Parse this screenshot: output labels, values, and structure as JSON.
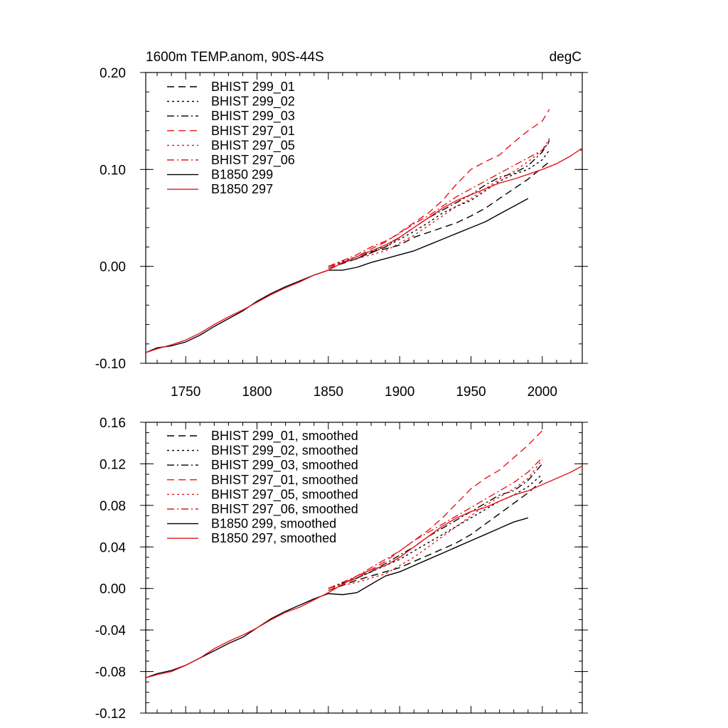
{
  "figure": {
    "title_left": "1600m TEMP.anom, 90S-44S",
    "title_right": "degC"
  },
  "styles": {
    "black": "#000000",
    "red": "#e8141e",
    "dash_types": {
      "dash": "10,6",
      "dot": "3,4",
      "dashdot": "10,4,2,4",
      "solid": ""
    }
  },
  "chart_data": [
    {
      "type": "line",
      "xlim": [
        1722,
        2028
      ],
      "ylim": [
        -0.1,
        0.2
      ],
      "x_ticks": [
        1750,
        1800,
        1850,
        1900,
        1950,
        2000
      ],
      "x_tick_labels": [
        "1750",
        "1800",
        "1850",
        "1900",
        "1950",
        "2000"
      ],
      "y_ticks": [
        -0.1,
        0.0,
        0.1,
        0.2
      ],
      "y_tick_labels": [
        "-0.10",
        "0.00",
        "0.10",
        "0.20"
      ],
      "y_minor_step": 0.02,
      "series": [
        {
          "name": "BHIST 299_01",
          "color": "black",
          "dash": "dash",
          "x": [
            1850,
            1870,
            1880,
            1890,
            1900,
            1910,
            1920,
            1930,
            1940,
            1950,
            1960,
            1970,
            1980,
            1990,
            2000,
            2005
          ],
          "y": [
            -0.002,
            0.008,
            0.015,
            0.018,
            0.022,
            0.03,
            0.035,
            0.04,
            0.045,
            0.052,
            0.06,
            0.07,
            0.08,
            0.09,
            0.102,
            0.108
          ]
        },
        {
          "name": "BHIST 299_02",
          "color": "black",
          "dash": "dot",
          "x": [
            1850,
            1870,
            1880,
            1890,
            1900,
            1910,
            1920,
            1930,
            1940,
            1950,
            1960,
            1970,
            1980,
            1990,
            2000,
            2005
          ],
          "y": [
            0.0,
            0.01,
            0.016,
            0.02,
            0.028,
            0.036,
            0.045,
            0.055,
            0.062,
            0.068,
            0.078,
            0.088,
            0.095,
            0.1,
            0.11,
            0.12
          ]
        },
        {
          "name": "BHIST 299_03",
          "color": "black",
          "dash": "dashdot",
          "x": [
            1850,
            1870,
            1880,
            1890,
            1900,
            1910,
            1920,
            1930,
            1940,
            1950,
            1960,
            1970,
            1980,
            1990,
            2000,
            2005
          ],
          "y": [
            0.0,
            0.008,
            0.014,
            0.02,
            0.03,
            0.04,
            0.05,
            0.058,
            0.066,
            0.074,
            0.084,
            0.092,
            0.096,
            0.104,
            0.118,
            0.13
          ]
        },
        {
          "name": "BHIST 297_01",
          "color": "red",
          "dash": "dash",
          "x": [
            1850,
            1870,
            1880,
            1890,
            1900,
            1910,
            1920,
            1930,
            1940,
            1950,
            1960,
            1970,
            1980,
            1990,
            2000,
            2005
          ],
          "y": [
            -0.002,
            0.01,
            0.018,
            0.025,
            0.035,
            0.045,
            0.055,
            0.068,
            0.085,
            0.1,
            0.108,
            0.115,
            0.128,
            0.14,
            0.15,
            0.162
          ]
        },
        {
          "name": "BHIST 297_05",
          "color": "red",
          "dash": "dot",
          "x": [
            1850,
            1870,
            1880,
            1890,
            1900,
            1910,
            1920,
            1930,
            1940,
            1950,
            1960,
            1970,
            1980,
            1990,
            2000,
            2005
          ],
          "y": [
            0.0,
            0.008,
            0.012,
            0.016,
            0.024,
            0.032,
            0.042,
            0.052,
            0.062,
            0.07,
            0.08,
            0.09,
            0.098,
            0.108,
            0.12,
            0.128
          ]
        },
        {
          "name": "BHIST 297_06",
          "color": "red",
          "dash": "dashdot",
          "x": [
            1850,
            1870,
            1880,
            1890,
            1900,
            1910,
            1920,
            1930,
            1940,
            1950,
            1960,
            1970,
            1980,
            1990,
            2000,
            2005
          ],
          "y": [
            0.0,
            0.012,
            0.02,
            0.026,
            0.034,
            0.044,
            0.052,
            0.062,
            0.072,
            0.08,
            0.088,
            0.096,
            0.104,
            0.112,
            0.12,
            0.132
          ]
        },
        {
          "name": "B1850 299",
          "color": "black",
          "dash": "solid",
          "x": [
            1722,
            1730,
            1740,
            1750,
            1760,
            1770,
            1780,
            1790,
            1800,
            1810,
            1820,
            1830,
            1840,
            1850,
            1860,
            1870,
            1880,
            1890,
            1900,
            1910,
            1920,
            1930,
            1940,
            1950,
            1960,
            1970,
            1980,
            1990
          ],
          "y": [
            -0.089,
            -0.084,
            -0.082,
            -0.078,
            -0.071,
            -0.062,
            -0.054,
            -0.046,
            -0.036,
            -0.028,
            -0.021,
            -0.015,
            -0.009,
            -0.004,
            -0.004,
            -0.001,
            0.004,
            0.008,
            0.012,
            0.016,
            0.022,
            0.028,
            0.034,
            0.04,
            0.046,
            0.054,
            0.062,
            0.07
          ]
        },
        {
          "name": "B1850 297",
          "color": "red",
          "dash": "solid",
          "x": [
            1722,
            1730,
            1740,
            1750,
            1760,
            1770,
            1780,
            1790,
            1800,
            1810,
            1820,
            1830,
            1840,
            1850,
            1860,
            1870,
            1880,
            1890,
            1900,
            1910,
            1920,
            1930,
            1940,
            1950,
            1960,
            1970,
            1980,
            1990,
            2000,
            2010,
            2020,
            2028
          ],
          "y": [
            -0.089,
            -0.085,
            -0.081,
            -0.076,
            -0.069,
            -0.06,
            -0.052,
            -0.045,
            -0.037,
            -0.029,
            -0.022,
            -0.016,
            -0.009,
            -0.004,
            0.004,
            0.01,
            0.016,
            0.022,
            0.03,
            0.04,
            0.05,
            0.06,
            0.068,
            0.074,
            0.08,
            0.086,
            0.09,
            0.095,
            0.1,
            0.106,
            0.114,
            0.122
          ]
        }
      ]
    },
    {
      "type": "line",
      "xlim": [
        1722,
        2028
      ],
      "ylim": [
        -0.12,
        0.16
      ],
      "x_ticks": [
        1750,
        1800,
        1850,
        1900,
        1950,
        2000
      ],
      "x_tick_labels": [],
      "y_ticks": [
        -0.12,
        -0.08,
        -0.04,
        0.0,
        0.04,
        0.08,
        0.12,
        0.16
      ],
      "y_tick_labels": [
        "-0.12",
        "-0.08",
        "-0.04",
        "0.00",
        "0.04",
        "0.08",
        "0.12",
        "0.16"
      ],
      "y_minor_step": 0.01,
      "series": [
        {
          "name": "BHIST 299_01, smoothed",
          "color": "black",
          "dash": "dash",
          "x": [
            1850,
            1870,
            1880,
            1890,
            1900,
            1910,
            1920,
            1930,
            1940,
            1950,
            1960,
            1970,
            1980,
            1990,
            2000
          ],
          "y": [
            -0.002,
            0.008,
            0.012,
            0.016,
            0.02,
            0.026,
            0.032,
            0.038,
            0.044,
            0.052,
            0.062,
            0.072,
            0.082,
            0.092,
            0.104
          ]
        },
        {
          "name": "BHIST 299_02, smoothed",
          "color": "black",
          "dash": "dot",
          "x": [
            1850,
            1870,
            1880,
            1890,
            1900,
            1910,
            1920,
            1930,
            1940,
            1950,
            1960,
            1970,
            1980,
            1990,
            2000
          ],
          "y": [
            0.0,
            0.01,
            0.016,
            0.022,
            0.028,
            0.036,
            0.044,
            0.052,
            0.06,
            0.068,
            0.076,
            0.084,
            0.09,
            0.098,
            0.11
          ]
        },
        {
          "name": "BHIST 299_03, smoothed",
          "color": "black",
          "dash": "dashdot",
          "x": [
            1850,
            1870,
            1880,
            1890,
            1900,
            1910,
            1920,
            1930,
            1940,
            1950,
            1960,
            1970,
            1980,
            1990,
            2000
          ],
          "y": [
            0.0,
            0.01,
            0.016,
            0.024,
            0.032,
            0.04,
            0.05,
            0.058,
            0.066,
            0.074,
            0.082,
            0.09,
            0.094,
            0.104,
            0.12
          ]
        },
        {
          "name": "BHIST 297_01, smoothed",
          "color": "red",
          "dash": "dash",
          "x": [
            1850,
            1870,
            1880,
            1890,
            1900,
            1910,
            1920,
            1930,
            1940,
            1950,
            1960,
            1970,
            1980,
            1990,
            2000
          ],
          "y": [
            -0.002,
            0.01,
            0.018,
            0.026,
            0.036,
            0.046,
            0.056,
            0.068,
            0.082,
            0.096,
            0.106,
            0.114,
            0.126,
            0.138,
            0.152
          ]
        },
        {
          "name": "BHIST 297_05, smoothed",
          "color": "red",
          "dash": "dot",
          "x": [
            1850,
            1870,
            1880,
            1890,
            1900,
            1910,
            1920,
            1930,
            1940,
            1950,
            1960,
            1970,
            1980,
            1990,
            2000
          ],
          "y": [
            0.0,
            0.006,
            0.01,
            0.014,
            0.022,
            0.03,
            0.04,
            0.05,
            0.06,
            0.07,
            0.08,
            0.088,
            0.096,
            0.106,
            0.124
          ]
        },
        {
          "name": "BHIST 297_06, smoothed",
          "color": "red",
          "dash": "dashdot",
          "x": [
            1850,
            1870,
            1880,
            1890,
            1900,
            1910,
            1920,
            1930,
            1940,
            1950,
            1960,
            1970,
            1980,
            1990,
            2000
          ],
          "y": [
            0.0,
            0.012,
            0.02,
            0.028,
            0.036,
            0.046,
            0.054,
            0.062,
            0.07,
            0.078,
            0.086,
            0.094,
            0.102,
            0.112,
            0.126
          ]
        },
        {
          "name": "B1850 299, smoothed",
          "color": "black",
          "dash": "solid",
          "x": [
            1722,
            1730,
            1740,
            1750,
            1760,
            1770,
            1780,
            1790,
            1800,
            1810,
            1820,
            1830,
            1840,
            1850,
            1860,
            1870,
            1880,
            1890,
            1900,
            1910,
            1920,
            1930,
            1940,
            1950,
            1960,
            1970,
            1980,
            1990
          ],
          "y": [
            -0.086,
            -0.082,
            -0.079,
            -0.074,
            -0.067,
            -0.06,
            -0.053,
            -0.047,
            -0.038,
            -0.029,
            -0.022,
            -0.016,
            -0.01,
            -0.005,
            -0.006,
            -0.004,
            0.004,
            0.012,
            0.016,
            0.022,
            0.028,
            0.034,
            0.04,
            0.046,
            0.052,
            0.058,
            0.064,
            0.068
          ]
        },
        {
          "name": "B1850 297, smoothed",
          "color": "red",
          "dash": "solid",
          "x": [
            1722,
            1730,
            1740,
            1750,
            1760,
            1770,
            1780,
            1790,
            1800,
            1810,
            1820,
            1830,
            1840,
            1850,
            1860,
            1870,
            1880,
            1890,
            1900,
            1910,
            1920,
            1930,
            1940,
            1950,
            1960,
            1970,
            1980,
            1990,
            2000,
            2010,
            2020,
            2028
          ],
          "y": [
            -0.086,
            -0.083,
            -0.08,
            -0.074,
            -0.067,
            -0.058,
            -0.051,
            -0.045,
            -0.038,
            -0.03,
            -0.023,
            -0.018,
            -0.011,
            -0.004,
            0.004,
            0.012,
            0.018,
            0.022,
            0.03,
            0.04,
            0.05,
            0.06,
            0.068,
            0.074,
            0.078,
            0.084,
            0.09,
            0.094,
            0.1,
            0.106,
            0.112,
            0.118
          ]
        }
      ]
    }
  ]
}
